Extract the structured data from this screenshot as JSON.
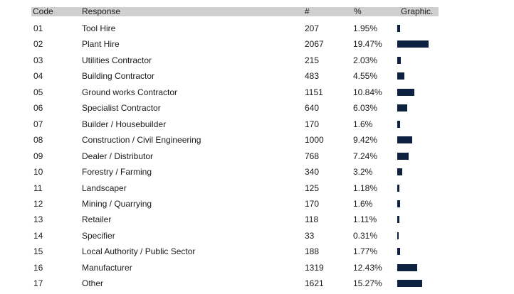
{
  "table": {
    "headers": {
      "code": "Code",
      "response": "Response",
      "count": "#",
      "percent": "%",
      "graphic": "Graphic."
    },
    "bar_color": "#0d2240",
    "rows": [
      {
        "code": "01",
        "response": "Tool Hire",
        "count": "207",
        "percent": "1.95%",
        "pct_value": 1.95
      },
      {
        "code": "02",
        "response": "Plant Hire",
        "count": "2067",
        "percent": "19.47%",
        "pct_value": 19.47
      },
      {
        "code": "03",
        "response": "Utilities Contractor",
        "count": "215",
        "percent": "2.03%",
        "pct_value": 2.03
      },
      {
        "code": "04",
        "response": "Building Contractor",
        "count": "483",
        "percent": "4.55%",
        "pct_value": 4.55
      },
      {
        "code": "05",
        "response": "Ground works Contractor",
        "count": "1151",
        "percent": "10.84%",
        "pct_value": 10.84
      },
      {
        "code": "06",
        "response": "Specialist Contractor",
        "count": "640",
        "percent": "6.03%",
        "pct_value": 6.03
      },
      {
        "code": "07",
        "response": "Builder / Housebuilder",
        "count": "170",
        "percent": "1.6%",
        "pct_value": 1.6
      },
      {
        "code": "08",
        "response": "Construction / Civil Engineering",
        "count": "1000",
        "percent": "9.42%",
        "pct_value": 9.42
      },
      {
        "code": "09",
        "response": "Dealer / Distributor",
        "count": "768",
        "percent": "7.24%",
        "pct_value": 7.24
      },
      {
        "code": "10",
        "response": "Forestry / Farming",
        "count": "340",
        "percent": "3.2%",
        "pct_value": 3.2
      },
      {
        "code": "11",
        "response": "Landscaper",
        "count": "125",
        "percent": "1.18%",
        "pct_value": 1.18
      },
      {
        "code": "12",
        "response": "Mining /  Quarrying",
        "count": "170",
        "percent": "1.6%",
        "pct_value": 1.6
      },
      {
        "code": "13",
        "response": "Retailer",
        "count": "118",
        "percent": "1.11%",
        "pct_value": 1.11
      },
      {
        "code": "14",
        "response": "Specifier",
        "count": "33",
        "percent": "0.31%",
        "pct_value": 0.31
      },
      {
        "code": "15",
        "response": "Local Authority / Public Sector",
        "count": "188",
        "percent": "1.77%",
        "pct_value": 1.77
      },
      {
        "code": "16",
        "response": "Manufacturer",
        "count": "1319",
        "percent": "12.43%",
        "pct_value": 12.43
      },
      {
        "code": "17",
        "response": "Other",
        "count": "1621",
        "percent": "15.27%",
        "pct_value": 15.27
      }
    ]
  }
}
